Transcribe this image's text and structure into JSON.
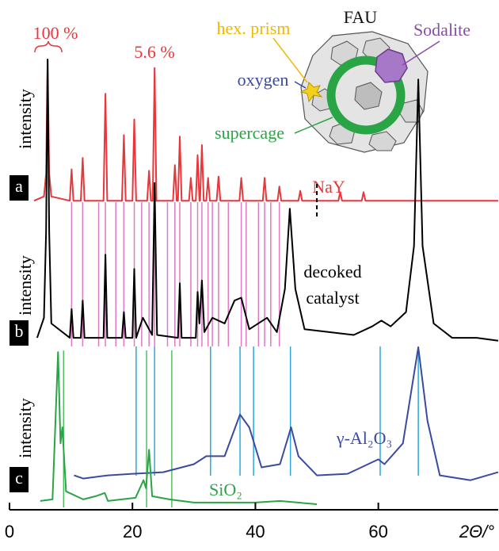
{
  "chart_data": {
    "type": "line",
    "x_label": "2Θ/°",
    "xlim": [
      0,
      79.5
    ],
    "xticks": [
      0,
      20,
      40,
      60
    ],
    "panels": [
      {
        "label": "a",
        "y_label": "intensity",
        "ylim": [
          0,
          100
        ],
        "series": [
          {
            "name": "NaY",
            "color": "#e8373b",
            "x": [
              4,
              5.6,
              5.95,
              6.2,
              6.45,
              6.8,
              9.8,
              10.1,
              10.4,
              11.6,
              11.9,
              12.2,
              15.3,
              15.6,
              15.9,
              18.3,
              18.6,
              18.9,
              20.0,
              20.3,
              20.6,
              22.4,
              22.7,
              23.0,
              23.3,
              23.6,
              23.9,
              26.6,
              26.9,
              27.2,
              27.4,
              27.7,
              28.0,
              29.2,
              29.5,
              29.8,
              30.3,
              30.6,
              30.9,
              31.0,
              31.3,
              31.6,
              32.0,
              32.3,
              32.6,
              33.7,
              34.0,
              34.3,
              37.4,
              37.7,
              38.0,
              41.2,
              41.5,
              41.8,
              43.6,
              43.9,
              44.2,
              47.0,
              47.3,
              47.6,
              53.5,
              53.8,
              54.1,
              57.3,
              57.6,
              57.9,
              79.5
            ],
            "values": [
              1,
              4,
              20,
              100,
              20,
              4,
              1,
              23,
              1,
              1,
              31,
              1,
              1,
              76,
              1,
              1,
              47,
              1,
              1,
              58,
              1,
              1,
              22,
              1,
              1,
              94,
              1,
              1,
              26,
              1,
              1,
              46,
              1,
              1,
              17,
              1,
              1,
              33,
              1,
              1,
              40,
              1,
              1,
              17,
              1,
              1,
              18,
              1,
              1,
              17,
              1,
              1,
              17,
              1,
              1,
              11,
              1,
              1,
              8,
              1,
              1,
              7,
              1,
              1,
              7,
              1,
              1
            ]
          }
        ]
      },
      {
        "label": "b",
        "y_label": "intensity",
        "ylim": [
          0,
          100
        ],
        "series": [
          {
            "name": "decoked catalyst",
            "color": "#000000",
            "x": [
              4.5,
              5.6,
              5.95,
              6.2,
              6.45,
              6.8,
              9.8,
              10.1,
              10.4,
              11.6,
              11.9,
              12.2,
              15.3,
              15.6,
              15.9,
              18.3,
              18.6,
              18.9,
              20.0,
              20.3,
              20.6,
              21.7,
              23.2,
              23.6,
              24.0,
              27.4,
              27.7,
              28.0,
              30.3,
              30.6,
              30.9,
              31.3,
              31.7,
              33.0,
              35.0,
              36.6,
              37.7,
              39.0,
              41.9,
              43.5,
              44.8,
              45.6,
              46.5,
              48,
              52,
              56,
              59,
              60.5,
              62,
              64.5,
              65.8,
              66.5,
              67.2,
              69,
              72,
              76,
              79.5
            ],
            "values": [
              3,
              10,
              40,
              100,
              40,
              8,
              3,
              13,
              3,
              3,
              16,
              3,
              3,
              32,
              3,
              3,
              12,
              3,
              3,
              27,
              3,
              10,
              4,
              57,
              4,
              3,
              22,
              3,
              3,
              19,
              8,
              23,
              5,
              10,
              8,
              16,
              17,
              6,
              10,
              5,
              20,
              48,
              20,
              6,
              5,
              4,
              7,
              9,
              7,
              12,
              35,
              93,
              35,
              8,
              3,
              3,
              2
            ]
          }
        ]
      },
      {
        "label": "c",
        "y_label": "intensity",
        "ylim": [
          0,
          100
        ],
        "series": [
          {
            "name": "γ-Al₂O₃",
            "color": "#3b4aa0",
            "x": [
              10.5,
              12,
              16,
              20,
              25,
              30,
              32,
              35,
              37.5,
              39,
              41,
              44,
              45.8,
              47,
              50,
              55,
              60,
              61,
              64,
              66.5,
              68,
              70,
              75,
              79.5
            ],
            "values": [
              20,
              18,
              20,
              21,
              22,
              27,
              32,
              32,
              58,
              50,
              25,
              27,
              50,
              32,
              20,
              21,
              30,
              27,
              40,
              100,
              54,
              20,
              17,
              22
            ]
          },
          {
            "name": "SiO₂",
            "color": "#2aa545",
            "x": [
              5,
              7,
              7.9,
              8.3,
              8.6,
              9.2,
              12,
              14,
              15.5,
              16,
              20.5,
              21.8,
              22.2,
              22.7,
              23.2,
              26,
              30,
              40,
              44,
              50
            ],
            "values": [
              4,
              5,
              97,
              40,
              50,
              10,
              5,
              7,
              9,
              4,
              6,
              17,
              12,
              36,
              7,
              5,
              3,
              3,
              4,
              2
            ]
          }
        ]
      }
    ],
    "reference_lines": [
      {
        "color": "#e07ac4",
        "x": [
          10.1,
          11.9,
          14.5,
          15.6,
          17.3,
          18.6,
          20.3,
          21.5,
          22.7,
          23.6,
          25.7,
          26.9,
          27.7,
          29.5,
          30.6,
          31.3,
          32.3,
          33.0,
          34.0,
          35.6,
          37.7,
          38.5,
          40.5,
          41.5,
          42.5,
          43.9
        ]
      },
      {
        "color": "#29a8e0",
        "x": [
          20.6,
          23.6,
          32.7,
          37.5,
          39.7,
          45.7,
          60.3,
          66.5
        ]
      },
      {
        "color": "#50c060",
        "x": [
          8.8,
          22.3,
          26.4
        ]
      }
    ],
    "dashed_marker_x": 50,
    "annotations": {
      "peak_100": "100 %",
      "peak_5_6": "5.6 %"
    },
    "inset": {
      "title": "FAU",
      "hex_prism": "hex. prism",
      "sodalite": "Sodalite",
      "oxygen": "oxygen",
      "supercage": "supercage"
    }
  }
}
